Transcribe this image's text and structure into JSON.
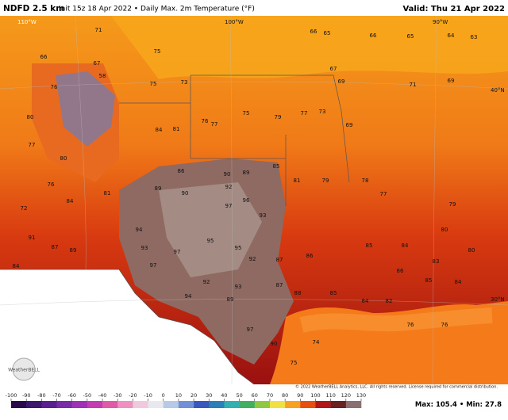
{
  "header": {
    "title": "NDFD 2.5 km",
    "subtitle": "Init 15z 18 Apr 2022 • Daily Max. 2m Temperature (°F)",
    "valid": "Valid: Thu 21 Apr 2022"
  },
  "map": {
    "graticule": [
      "110°W",
      "100°W",
      "90°W",
      "40°N",
      "30°N"
    ],
    "station_values": [
      66,
      71,
      75,
      73,
      67,
      58,
      75,
      76,
      80,
      77,
      80,
      84,
      81,
      76,
      77,
      75,
      79,
      77,
      73,
      69,
      66,
      65,
      66,
      65,
      64,
      63,
      67,
      69,
      71,
      69,
      86,
      90,
      89,
      85,
      81,
      79,
      78,
      77,
      79,
      89,
      90,
      92,
      97,
      96,
      93,
      94,
      93,
      95,
      97,
      95,
      92,
      87,
      86,
      85,
      84,
      83,
      86,
      85,
      84,
      97,
      92,
      93,
      89,
      94,
      87,
      88,
      85,
      84,
      82,
      76,
      76,
      74,
      75,
      97,
      90,
      91,
      87,
      89,
      84,
      72,
      76,
      84,
      81,
      80,
      80
    ]
  },
  "colorbar": {
    "ticks": [
      -100,
      -90,
      -80,
      -70,
      -60,
      -50,
      -40,
      -30,
      -20,
      -10,
      0,
      10,
      20,
      30,
      40,
      50,
      60,
      70,
      80,
      90,
      100,
      110,
      120,
      130
    ],
    "colors": [
      "#2a0a4a",
      "#3d1670",
      "#5a2090",
      "#7a2ca8",
      "#a030b8",
      "#c43cb0",
      "#e05aa8",
      "#ee90c0",
      "#f2c8dc",
      "#e8e8ee",
      "#b8c8e8",
      "#7090d8",
      "#3858c0",
      "#2a80b8",
      "#30b0b0",
      "#40b060",
      "#90c840",
      "#f0e040",
      "#f8a020",
      "#e85010",
      "#b01818",
      "#6a2020",
      "#8a7070"
    ]
  },
  "stats": {
    "max_label": "Max:",
    "max": 105.4,
    "sep": "•",
    "min_label": "Min:",
    "min": 27.8
  },
  "copyright": "© 2022 WeatherBELL Analytics, LLC. All rights reserved. License required for commercial distribution.",
  "logo": "WeatherBELL"
}
